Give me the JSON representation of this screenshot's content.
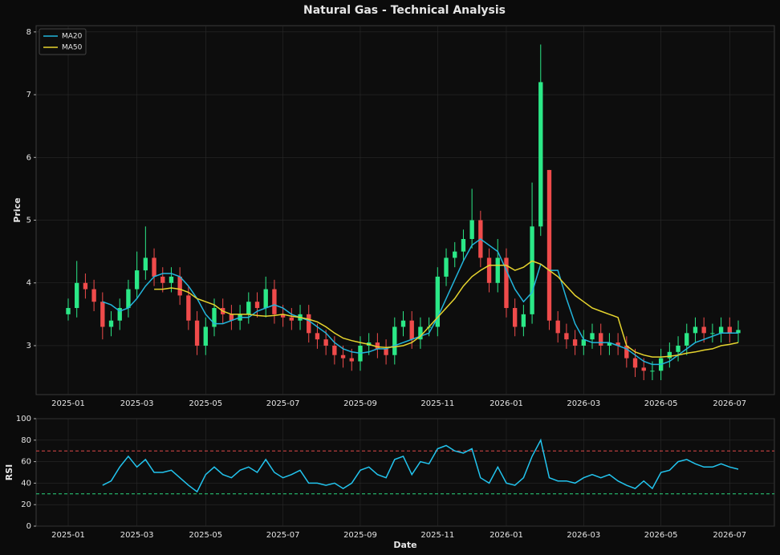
{
  "chart_data": [
    {
      "type": "candlestick",
      "title": "Natural Gas - Technical Analysis",
      "ylabel": "Price",
      "categories": [
        "2025-01",
        null,
        null,
        null,
        null,
        null,
        null,
        null,
        "2025-03",
        null,
        null,
        null,
        null,
        null,
        null,
        null,
        "2025-05",
        null,
        null,
        null,
        null,
        null,
        null,
        null,
        null,
        "2025-07",
        null,
        null,
        null,
        null,
        null,
        null,
        null,
        null,
        "2025-09",
        null,
        null,
        null,
        null,
        null,
        null,
        null,
        null,
        "2025-11",
        null,
        null,
        null,
        null,
        null,
        null,
        null,
        "2026-01",
        null,
        null,
        null,
        null,
        null,
        null,
        null,
        null,
        "2026-03",
        null,
        null,
        null,
        null,
        null,
        null,
        null,
        null,
        "2026-05",
        null,
        null,
        null,
        null,
        null,
        null,
        null,
        "2026-07",
        null
      ],
      "open": [
        3.5,
        3.6,
        4.0,
        3.9,
        3.7,
        3.3,
        3.4,
        3.6,
        3.9,
        4.2,
        4.4,
        4.1,
        4.0,
        4.1,
        3.8,
        3.4,
        3.0,
        3.3,
        3.6,
        3.5,
        3.4,
        3.5,
        3.7,
        3.6,
        3.9,
        3.5,
        3.45,
        3.4,
        3.5,
        3.2,
        3.1,
        3.0,
        2.85,
        2.8,
        2.75,
        3.0,
        3.05,
        2.95,
        2.85,
        3.3,
        3.4,
        3.1,
        3.3,
        3.3,
        4.1,
        4.4,
        4.5,
        4.7,
        5.0,
        4.4,
        4.0,
        4.4,
        3.6,
        3.3,
        3.5,
        4.9,
        5.8,
        3.4,
        3.2,
        3.1,
        3.0,
        3.1,
        3.2,
        3.0,
        3.05,
        3.0,
        2.8,
        2.65,
        2.6,
        2.6,
        2.8,
        2.9,
        3.0,
        3.2,
        3.3,
        3.2,
        3.2,
        3.3,
        3.2
      ],
      "high": [
        3.75,
        4.35,
        4.15,
        4.05,
        3.85,
        3.55,
        3.75,
        4.05,
        4.5,
        4.9,
        4.55,
        4.25,
        4.25,
        4.25,
        3.95,
        3.55,
        3.45,
        3.75,
        3.75,
        3.65,
        3.65,
        3.85,
        3.85,
        4.1,
        4.05,
        3.65,
        3.6,
        3.65,
        3.65,
        3.35,
        3.25,
        3.15,
        3.0,
        2.95,
        3.15,
        3.2,
        3.2,
        3.1,
        3.45,
        3.55,
        3.55,
        3.45,
        3.45,
        4.25,
        4.55,
        4.65,
        4.85,
        5.5,
        5.15,
        4.55,
        4.7,
        4.55,
        3.75,
        3.65,
        5.6,
        7.8,
        5.8,
        3.55,
        3.35,
        3.25,
        3.25,
        3.35,
        3.35,
        3.2,
        3.2,
        3.15,
        2.95,
        2.8,
        2.75,
        2.95,
        3.05,
        3.15,
        3.35,
        3.45,
        3.45,
        3.35,
        3.45,
        3.45,
        3.4
      ],
      "low": [
        3.4,
        3.45,
        3.75,
        3.55,
        3.1,
        3.15,
        3.25,
        3.45,
        3.75,
        4.05,
        3.95,
        3.85,
        3.85,
        3.65,
        3.25,
        2.85,
        2.85,
        3.15,
        3.35,
        3.25,
        3.25,
        3.35,
        3.45,
        3.45,
        3.35,
        3.3,
        3.25,
        3.25,
        3.05,
        2.95,
        2.85,
        2.7,
        2.65,
        2.6,
        2.6,
        2.85,
        2.8,
        2.7,
        2.7,
        3.15,
        2.95,
        2.95,
        3.15,
        3.15,
        3.95,
        4.25,
        4.35,
        4.55,
        4.25,
        3.85,
        3.85,
        3.45,
        3.15,
        3.15,
        3.35,
        4.75,
        3.25,
        3.05,
        2.95,
        2.85,
        2.85,
        2.95,
        2.85,
        2.85,
        2.85,
        2.65,
        2.5,
        2.45,
        2.45,
        2.45,
        2.65,
        2.75,
        2.85,
        3.05,
        3.05,
        3.05,
        3.05,
        3.05,
        3.05
      ],
      "close": [
        3.6,
        4.0,
        3.9,
        3.7,
        3.3,
        3.4,
        3.6,
        3.9,
        4.2,
        4.4,
        4.1,
        4.0,
        4.1,
        3.8,
        3.4,
        3.0,
        3.3,
        3.6,
        3.5,
        3.4,
        3.5,
        3.7,
        3.6,
        3.9,
        3.5,
        3.45,
        3.4,
        3.5,
        3.2,
        3.1,
        3.0,
        2.85,
        2.8,
        2.75,
        3.0,
        3.05,
        2.95,
        2.85,
        3.3,
        3.4,
        3.1,
        3.3,
        3.3,
        4.1,
        4.4,
        4.5,
        4.7,
        5.0,
        4.4,
        4.0,
        4.4,
        3.6,
        3.3,
        3.5,
        4.9,
        7.2,
        3.4,
        3.2,
        3.1,
        3.0,
        3.1,
        3.2,
        3.0,
        3.05,
        3.0,
        2.8,
        2.65,
        2.6,
        2.6,
        2.8,
        2.9,
        3.0,
        3.2,
        3.3,
        3.2,
        3.2,
        3.3,
        3.2,
        3.25
      ],
      "up_color": "#2be887",
      "down_color": "#ef4b4b",
      "series": [
        {
          "name": "MA20",
          "color": "#22b5dc",
          "values": [
            null,
            null,
            null,
            null,
            3.7,
            3.65,
            3.55,
            3.6,
            3.75,
            3.95,
            4.1,
            4.15,
            4.15,
            4.1,
            3.95,
            3.75,
            3.5,
            3.35,
            3.35,
            3.4,
            3.45,
            3.45,
            3.55,
            3.6,
            3.65,
            3.6,
            3.5,
            3.45,
            3.4,
            3.3,
            3.2,
            3.05,
            2.95,
            2.9,
            2.88,
            2.9,
            2.95,
            2.95,
            3.0,
            3.05,
            3.1,
            3.15,
            3.2,
            3.45,
            3.75,
            4.05,
            4.35,
            4.6,
            4.7,
            4.6,
            4.5,
            4.2,
            3.9,
            3.7,
            3.85,
            4.3,
            4.2,
            4.2,
            3.75,
            3.35,
            3.1,
            3.05,
            3.05,
            3.05,
            3.0,
            2.95,
            2.85,
            2.75,
            2.7,
            2.7,
            2.75,
            2.85,
            2.95,
            3.05,
            3.1,
            3.15,
            3.2,
            3.2,
            3.2
          ]
        },
        {
          "name": "MA50",
          "color": "#e6d42e",
          "values": [
            null,
            null,
            null,
            null,
            null,
            null,
            null,
            null,
            null,
            null,
            3.9,
            3.9,
            3.92,
            3.9,
            3.85,
            3.75,
            3.7,
            3.65,
            3.55,
            3.5,
            3.5,
            3.5,
            3.48,
            3.47,
            3.48,
            3.5,
            3.47,
            3.45,
            3.42,
            3.38,
            3.3,
            3.2,
            3.12,
            3.08,
            3.05,
            3.02,
            2.98,
            2.97,
            2.98,
            3.0,
            3.05,
            3.15,
            3.3,
            3.45,
            3.6,
            3.75,
            3.95,
            4.1,
            4.2,
            4.28,
            4.28,
            4.28,
            4.2,
            4.25,
            4.35,
            4.3,
            4.2,
            4.1,
            3.95,
            3.8,
            3.7,
            3.6,
            3.55,
            3.5,
            3.45,
            3.0,
            2.9,
            2.85,
            2.82,
            2.82,
            2.83,
            2.85,
            2.88,
            2.9,
            2.93,
            2.95,
            3.0,
            3.02,
            3.05
          ]
        }
      ],
      "ylim": [
        2.22,
        8.1
      ],
      "yticks": [
        3,
        4,
        5,
        6,
        7,
        8
      ],
      "grid": true,
      "legend": "upper left"
    },
    {
      "type": "line",
      "ylabel": "RSI",
      "xlabel": "Date",
      "categories": [
        "2025-01",
        null,
        null,
        null,
        null,
        null,
        null,
        null,
        "2025-03",
        null,
        null,
        null,
        null,
        null,
        null,
        null,
        "2025-05",
        null,
        null,
        null,
        null,
        null,
        null,
        null,
        null,
        "2025-07",
        null,
        null,
        null,
        null,
        null,
        null,
        null,
        null,
        "2025-09",
        null,
        null,
        null,
        null,
        null,
        null,
        null,
        null,
        "2025-11",
        null,
        null,
        null,
        null,
        null,
        null,
        null,
        "2026-01",
        null,
        null,
        null,
        null,
        null,
        null,
        null,
        null,
        "2026-03",
        null,
        null,
        null,
        null,
        null,
        null,
        null,
        null,
        "2026-05",
        null,
        null,
        null,
        null,
        null,
        null,
        null,
        "2026-07",
        null
      ],
      "color": "#22c4ee",
      "values": [
        null,
        null,
        null,
        null,
        38,
        42,
        55,
        65,
        55,
        62,
        50,
        50,
        52,
        45,
        38,
        32,
        48,
        55,
        48,
        45,
        52,
        55,
        50,
        62,
        50,
        45,
        48,
        52,
        40,
        40,
        38,
        40,
        35,
        40,
        52,
        55,
        48,
        45,
        62,
        65,
        48,
        60,
        58,
        72,
        75,
        70,
        68,
        72,
        45,
        40,
        55,
        40,
        38,
        45,
        65,
        80,
        45,
        42,
        42,
        40,
        45,
        48,
        45,
        48,
        42,
        38,
        35,
        42,
        35,
        50,
        52,
        60,
        62,
        58,
        55,
        55,
        58,
        55,
        53
      ],
      "hlines": [
        {
          "value": 70,
          "color": "#e04848"
        },
        {
          "value": 30,
          "color": "#2bd67f"
        }
      ],
      "ylim": [
        0,
        100
      ],
      "yticks": [
        0,
        20,
        40,
        60,
        80,
        100
      ],
      "grid": true
    }
  ]
}
